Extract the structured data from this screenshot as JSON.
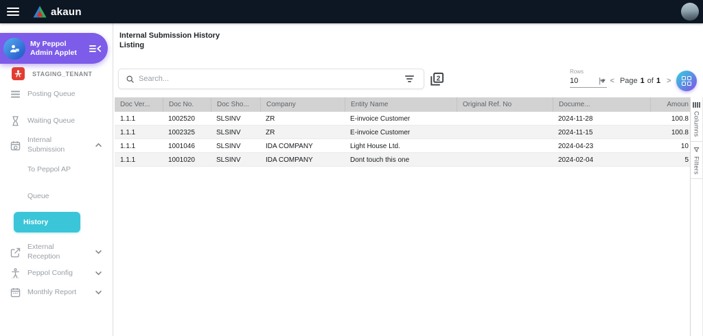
{
  "colors": {
    "topbar": "#0d1723",
    "accent_purple": "#7c5ce8",
    "accent_cyan": "#3bc5d8",
    "tenant_red": "#e23d32",
    "table_header_bg": "#d2d2d2"
  },
  "topbar": {
    "brand": "akaun"
  },
  "sidebar": {
    "applet_title": "My Peppol Admin Applet",
    "tenant": "STAGING_TENANT",
    "items": {
      "posting_queue": {
        "label": "Posting Queue",
        "icon": "list-icon"
      },
      "waiting_queue": {
        "label": "Waiting Queue",
        "icon": "hourglass-icon"
      },
      "internal_submission": {
        "label": "Internal Submission",
        "icon": "calendar-sync-icon",
        "expanded": true
      },
      "external_reception": {
        "label": "External Reception",
        "icon": "launch-icon"
      },
      "peppol_config": {
        "label": "Peppol Config",
        "icon": "accessibility-icon"
      },
      "monthly_report": {
        "label": "Monthly Report",
        "icon": "calendar-icon"
      }
    },
    "internal_children": {
      "to_peppol_ap": "To Peppol AP",
      "queue": "Queue",
      "history": "History"
    },
    "active_item": "History"
  },
  "main": {
    "title_line1": "Internal Submission History",
    "title_line2": "Listing",
    "toolbar": {
      "search_placeholder": "Search...",
      "duplicate_icon_label": "2",
      "rows_label": "Rows",
      "rows_value": "10",
      "pagination": {
        "first_icon": "|<",
        "prev_icon": "<",
        "page_label": "Page",
        "page": "1",
        "of_label": "of",
        "total": "1",
        "next_icon": ">",
        "last_icon": ">|"
      }
    },
    "table": {
      "columns": [
        "Doc Ver...",
        "Doc No.",
        "Doc Sho...",
        "Company",
        "Entity Name",
        "Original Ref. No",
        "Docume...",
        "Amoun"
      ],
      "rows": [
        [
          "1.1.1",
          "1002520",
          "SLSINV",
          "ZR",
          "E-invoice Customer",
          "",
          "2024-11-28",
          "100.8"
        ],
        [
          "1.1.1",
          "1002325",
          "SLSINV",
          "ZR",
          "E-invoice Customer",
          "",
          "2024-11-15",
          "100.8"
        ],
        [
          "1.1.1",
          "1001046",
          "SLSINV",
          "IDA COMPANY",
          "Light House Ltd.",
          "",
          "2024-04-23",
          "10"
        ],
        [
          "1.1.1",
          "1001020",
          "SLSINV",
          "IDA COMPANY",
          "Dont touch this one",
          "",
          "2024-02-04",
          "5"
        ]
      ]
    },
    "side_tabs": {
      "columns": "Columns",
      "filters": "Filters"
    }
  }
}
